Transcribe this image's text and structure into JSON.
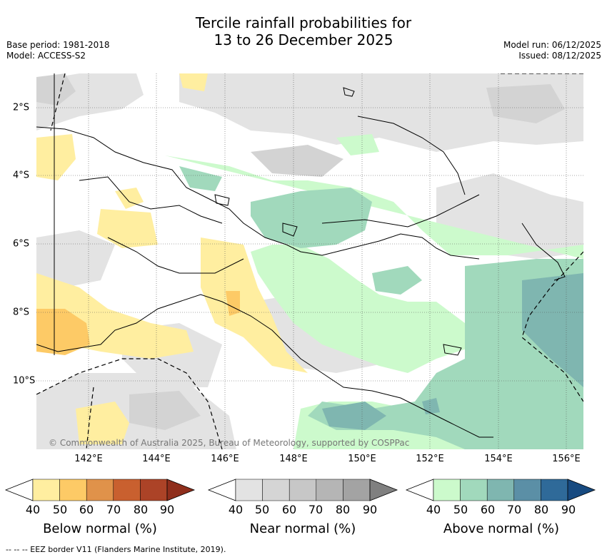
{
  "title_line1": "Tercile rainfall probabilities for",
  "title_line2": "13 to 26 December 2025",
  "base_period": "Base period: 1981-2018",
  "model": "Model: ACCESS-S2",
  "model_run": "Model run: 06/12/2025",
  "issued": "Issued: 08/12/2025",
  "copyright": "© Commonwealth of Australia 2025, Bureau of Meteorology, supported by COSPPac",
  "footnote": "--  --  -- EEZ border V11 (Flanders Marine Institute, 2019).",
  "x_ticks": [
    "142°E",
    "144°E",
    "146°E",
    "148°E",
    "150°E",
    "152°E",
    "154°E",
    "156°E"
  ],
  "y_ticks": [
    "2°S",
    "4°S",
    "6°S",
    "8°S",
    "10°S"
  ],
  "colorbars": [
    {
      "title": "Below normal (%)",
      "labels": [
        "40",
        "50",
        "60",
        "70",
        "80",
        "90"
      ],
      "colors": [
        "#ffeea0",
        "#fdca66",
        "#e0924a",
        "#c9602f",
        "#ac4327",
        "#8f2e1c"
      ]
    },
    {
      "title": "Near normal (%)",
      "labels": [
        "40",
        "50",
        "60",
        "70",
        "80",
        "90"
      ],
      "colors": [
        "#e3e3e3",
        "#d5d5d5",
        "#c7c7c7",
        "#b5b5b5",
        "#a3a3a3",
        "#808080"
      ]
    },
    {
      "title": "Above normal (%)",
      "labels": [
        "40",
        "50",
        "60",
        "70",
        "80",
        "90"
      ],
      "colors": [
        "#ccfacc",
        "#a1d9bc",
        "#7fb6b0",
        "#5b8fa6",
        "#2f6a99",
        "#174a80"
      ]
    }
  ],
  "colors": {
    "below_50": "#ffeea0",
    "below_60": "#fdca66",
    "near_50": "#e3e3e3",
    "near_60": "#d6d6d6",
    "above_50": "#ccfacc",
    "above_60": "#a1d9bc",
    "above_70": "#7fb6b0"
  }
}
